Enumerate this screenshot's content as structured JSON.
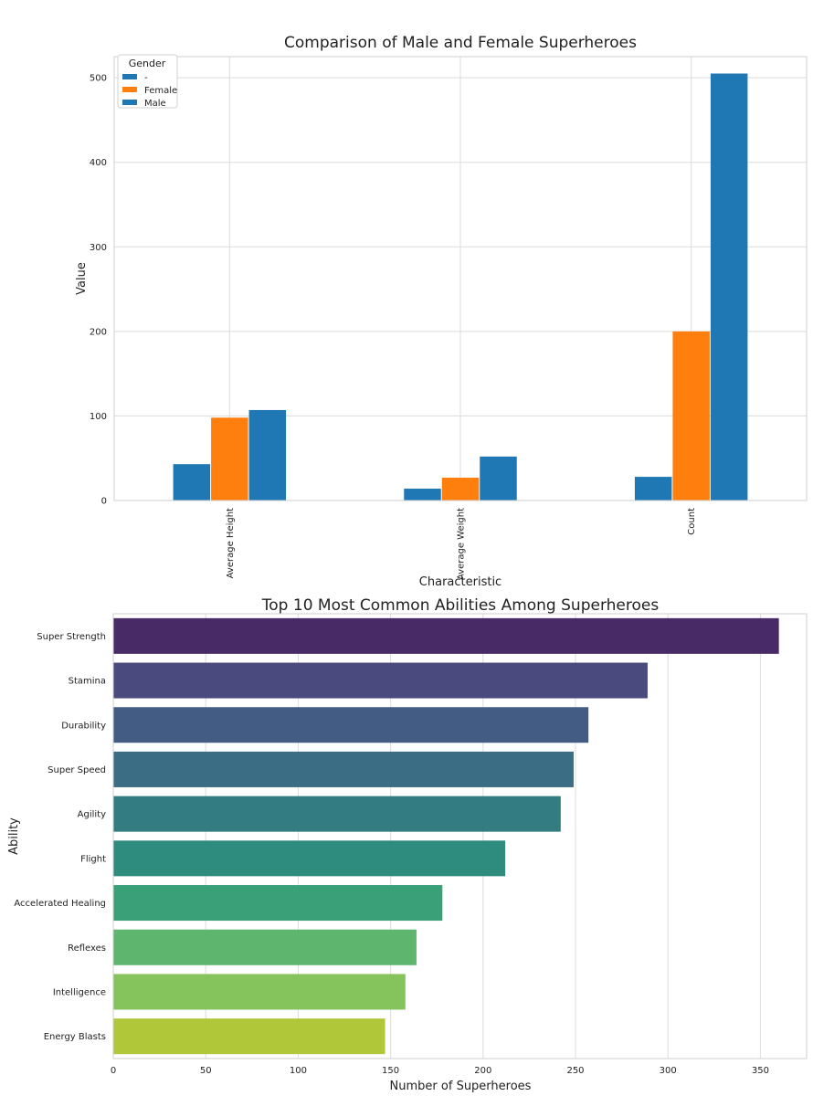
{
  "chart_data": [
    {
      "type": "bar",
      "title": "Comparison of Male and Female Superheroes",
      "xlabel": "Characteristic",
      "ylabel": "Value",
      "categories": [
        "Average Height",
        "Average Weight",
        "Count"
      ],
      "series": [
        {
          "name": "-",
          "color": "#1f77b4",
          "values": [
            43,
            14,
            28
          ]
        },
        {
          "name": "Female",
          "color": "#ff7f0e",
          "values": [
            98,
            27,
            200
          ]
        },
        {
          "name": "Male",
          "color": "#1f77b4",
          "values": [
            107,
            52,
            505
          ]
        }
      ],
      "ylim": [
        0,
        525
      ],
      "yticks": [
        0,
        100,
        200,
        300,
        400,
        500
      ],
      "legend": {
        "title": "Gender",
        "placement": "top-left"
      },
      "grid": true
    },
    {
      "type": "bar",
      "orientation": "horizontal",
      "title": "Top 10 Most Common Abilities Among Superheroes",
      "xlabel": "Number of Superheroes",
      "ylabel": "Ability",
      "categories": [
        "Super Strength",
        "Stamina",
        "Durability",
        "Super Speed",
        "Agility",
        "Flight",
        "Accelerated Healing",
        "Reflexes",
        "Intelligence",
        "Energy Blasts"
      ],
      "values": [
        360,
        289,
        257,
        249,
        242,
        212,
        178,
        164,
        158,
        147
      ],
      "colors": [
        "#482a66",
        "#4a4a7e",
        "#425c84",
        "#3b6e84",
        "#337d82",
        "#2d8c7d",
        "#3aa078",
        "#5eb56e",
        "#85c35c",
        "#b0c73a"
      ],
      "xlim": [
        0,
        375
      ],
      "xticks": [
        0,
        50,
        100,
        150,
        200,
        250,
        300,
        350
      ],
      "grid": true
    }
  ]
}
